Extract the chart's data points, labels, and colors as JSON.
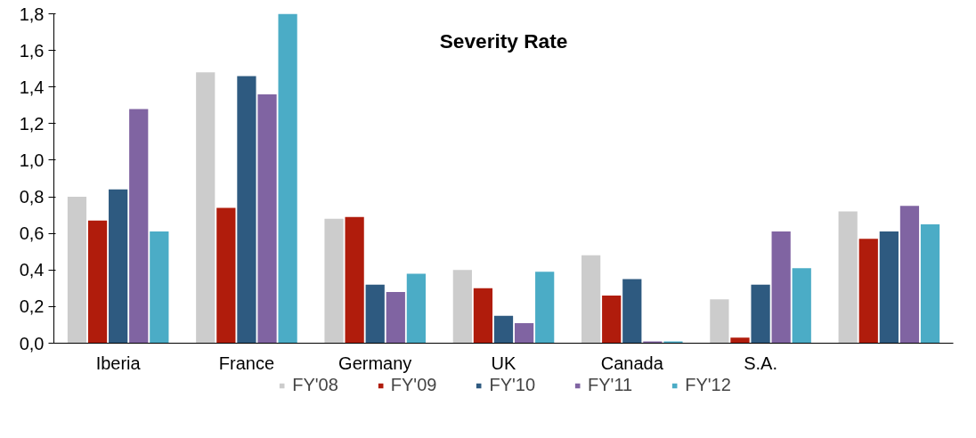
{
  "chart_data": {
    "type": "bar",
    "title": "Severity Rate",
    "categories": [
      "Iberia",
      "France",
      "Germany",
      "UK",
      "Canada",
      "S.A.",
      null
    ],
    "series": [
      {
        "name": "FY'08",
        "color": "#cccccc",
        "values": [
          0.8,
          1.48,
          0.68,
          0.4,
          0.48,
          0.24,
          0.72
        ]
      },
      {
        "name": "FY'09",
        "color": "#b01c0c",
        "values": [
          0.67,
          0.74,
          0.69,
          0.3,
          0.26,
          0.03,
          0.57
        ]
      },
      {
        "name": "FY'10",
        "color": "#2e5a80",
        "values": [
          0.84,
          1.46,
          0.32,
          0.15,
          0.35,
          0.32,
          0.61
        ]
      },
      {
        "name": "FY'11",
        "color": "#8064a2",
        "values": [
          1.28,
          1.36,
          0.28,
          0.11,
          0.01,
          0.61,
          0.75
        ]
      },
      {
        "name": "FY'12",
        "color": "#4bacc6",
        "values": [
          0.61,
          1.8,
          0.38,
          0.39,
          0.01,
          0.41,
          0.65
        ]
      }
    ],
    "ylim": [
      0,
      1.8
    ],
    "yticks": [
      {
        "value": 0,
        "label": "0,0"
      },
      {
        "value": 0.2,
        "label": "0,2"
      },
      {
        "value": 0.4,
        "label": "0,4"
      },
      {
        "value": 0.6,
        "label": "0,6"
      },
      {
        "value": 0.8,
        "label": "0,8"
      },
      {
        "value": 1.0,
        "label": "1,0"
      },
      {
        "value": 1.2,
        "label": "1,2"
      },
      {
        "value": 1.4,
        "label": "1,4"
      },
      {
        "value": 1.6,
        "label": "1,6"
      },
      {
        "value": 1.8,
        "label": "1,8"
      }
    ],
    "grid": false,
    "legend": "bottom"
  }
}
